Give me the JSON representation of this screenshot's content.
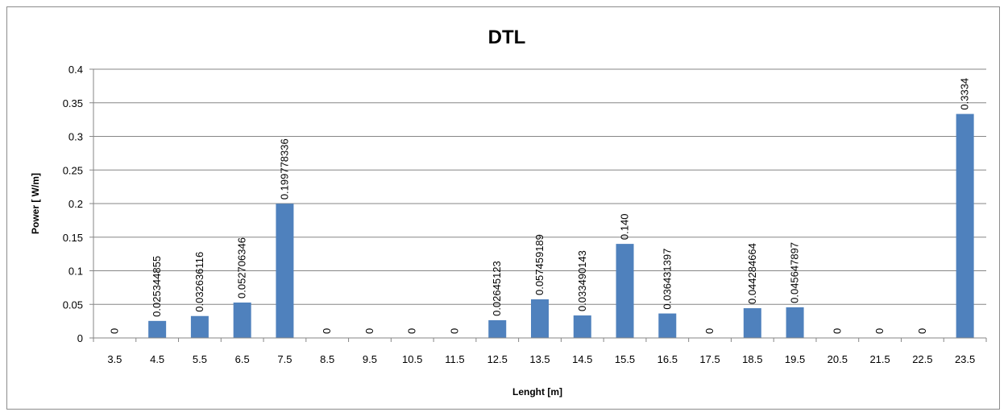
{
  "chart_data": {
    "type": "bar",
    "title": "DTL",
    "xlabel": "Lenght [m]",
    "ylabel": "Power [ W/m]",
    "ylim": [
      0,
      0.4
    ],
    "yticks": [
      "0",
      "0.05",
      "0.1",
      "0.15",
      "0.2",
      "0.25",
      "0.3",
      "0.35",
      "0.4"
    ],
    "grid": true,
    "legend": "none",
    "bar_color": "#4f81bd",
    "categories": [
      "3.5",
      "4.5",
      "5.5",
      "6.5",
      "7.5",
      "8.5",
      "9.5",
      "10.5",
      "11.5",
      "12.5",
      "13.5",
      "14.5",
      "15.5",
      "16.5",
      "17.5",
      "18.5",
      "19.5",
      "20.5",
      "21.5",
      "22.5",
      "23.5"
    ],
    "values": [
      0,
      0.025344855,
      0.032636116,
      0.052706346,
      0.199778336,
      0,
      0,
      0,
      0,
      0.02645123,
      0.057459189,
      0.033490143,
      0.14,
      0.036431397,
      0,
      0.044284664,
      0.045647897,
      0,
      0,
      0,
      0.3334
    ],
    "data_labels": [
      "0",
      "0.025344855",
      "0.032636116",
      "0.052706346",
      "0.199778336",
      "0",
      "0",
      "0",
      "0",
      "0.02645123",
      "0.057459189",
      "0.033490143",
      "0.140",
      "0.036431397",
      "0",
      "0.044284664",
      "0.045647897",
      "0",
      "0",
      "0",
      "0.3334"
    ]
  }
}
